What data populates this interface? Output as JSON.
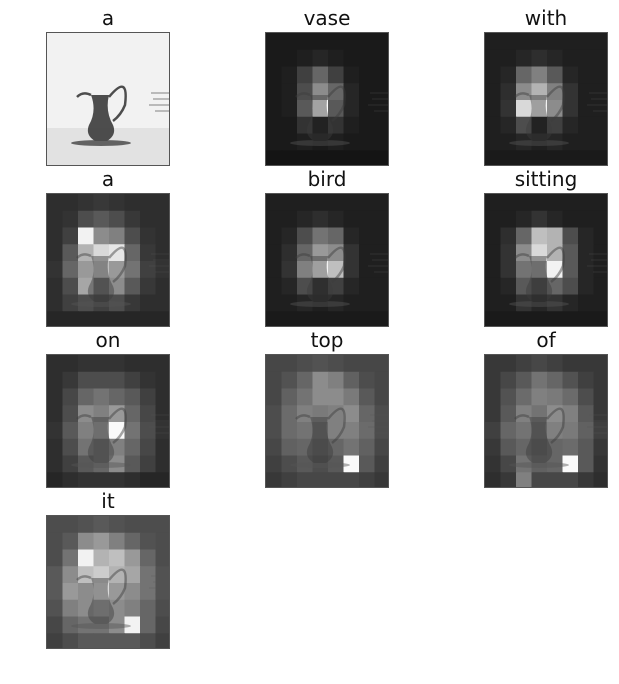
{
  "panels": [
    {
      "word": "a",
      "original": true,
      "grid": []
    },
    {
      "word": "vase",
      "original": false,
      "grid": [
        [
          0.1,
          0.1,
          0.1,
          0.1,
          0.1,
          0.1,
          0.1,
          0.1
        ],
        [
          0.1,
          0.1,
          0.12,
          0.15,
          0.12,
          0.1,
          0.1,
          0.1
        ],
        [
          0.1,
          0.12,
          0.25,
          0.4,
          0.25,
          0.12,
          0.1,
          0.1
        ],
        [
          0.1,
          0.12,
          0.3,
          0.55,
          0.4,
          0.15,
          0.1,
          0.1
        ],
        [
          0.1,
          0.12,
          0.35,
          0.98,
          0.35,
          0.15,
          0.1,
          0.1
        ],
        [
          0.1,
          0.1,
          0.2,
          0.05,
          0.2,
          0.12,
          0.1,
          0.1
        ],
        [
          0.1,
          0.1,
          0.12,
          0.1,
          0.12,
          0.1,
          0.1,
          0.1
        ],
        [
          0.08,
          0.08,
          0.08,
          0.08,
          0.08,
          0.08,
          0.08,
          0.08
        ]
      ]
    },
    {
      "word": "with",
      "original": false,
      "grid": [
        [
          0.12,
          0.12,
          0.12,
          0.12,
          0.12,
          0.12,
          0.12,
          0.12
        ],
        [
          0.12,
          0.12,
          0.15,
          0.18,
          0.15,
          0.12,
          0.12,
          0.12
        ],
        [
          0.12,
          0.15,
          0.4,
          0.5,
          0.35,
          0.15,
          0.12,
          0.12
        ],
        [
          0.12,
          0.18,
          0.55,
          0.7,
          0.5,
          0.2,
          0.12,
          0.12
        ],
        [
          0.12,
          0.2,
          0.85,
          0.95,
          0.55,
          0.2,
          0.12,
          0.12
        ],
        [
          0.12,
          0.15,
          0.3,
          0.05,
          0.25,
          0.15,
          0.12,
          0.12
        ],
        [
          0.12,
          0.12,
          0.15,
          0.12,
          0.15,
          0.12,
          0.12,
          0.12
        ],
        [
          0.1,
          0.1,
          0.1,
          0.1,
          0.1,
          0.1,
          0.1,
          0.1
        ]
      ]
    },
    {
      "word": "a",
      "original": false,
      "grid": [
        [
          0.18,
          0.18,
          0.2,
          0.22,
          0.2,
          0.18,
          0.18,
          0.18
        ],
        [
          0.18,
          0.2,
          0.3,
          0.35,
          0.3,
          0.22,
          0.18,
          0.18
        ],
        [
          0.18,
          0.25,
          0.95,
          0.55,
          0.5,
          0.3,
          0.2,
          0.18
        ],
        [
          0.18,
          0.35,
          0.7,
          0.85,
          0.9,
          0.4,
          0.22,
          0.18
        ],
        [
          0.2,
          0.4,
          0.6,
          0.75,
          0.6,
          0.45,
          0.25,
          0.2
        ],
        [
          0.18,
          0.3,
          0.65,
          0.4,
          0.55,
          0.35,
          0.22,
          0.18
        ],
        [
          0.18,
          0.25,
          0.3,
          0.25,
          0.3,
          0.22,
          0.18,
          0.18
        ],
        [
          0.15,
          0.15,
          0.15,
          0.15,
          0.15,
          0.15,
          0.15,
          0.15
        ]
      ]
    },
    {
      "word": "bird",
      "original": false,
      "grid": [
        [
          0.12,
          0.12,
          0.12,
          0.12,
          0.12,
          0.12,
          0.12,
          0.12
        ],
        [
          0.12,
          0.12,
          0.15,
          0.18,
          0.15,
          0.12,
          0.12,
          0.12
        ],
        [
          0.12,
          0.15,
          0.3,
          0.45,
          0.4,
          0.15,
          0.12,
          0.12
        ],
        [
          0.12,
          0.18,
          0.4,
          0.6,
          0.55,
          0.2,
          0.12,
          0.12
        ],
        [
          0.12,
          0.2,
          0.5,
          0.95,
          0.75,
          0.2,
          0.12,
          0.12
        ],
        [
          0.12,
          0.15,
          0.3,
          0.15,
          0.25,
          0.15,
          0.12,
          0.12
        ],
        [
          0.12,
          0.12,
          0.15,
          0.12,
          0.15,
          0.12,
          0.12,
          0.12
        ],
        [
          0.1,
          0.1,
          0.1,
          0.1,
          0.1,
          0.1,
          0.1,
          0.1
        ]
      ]
    },
    {
      "word": "sitting",
      "original": false,
      "grid": [
        [
          0.12,
          0.12,
          0.12,
          0.12,
          0.12,
          0.12,
          0.12,
          0.12
        ],
        [
          0.12,
          0.12,
          0.15,
          0.2,
          0.15,
          0.12,
          0.12,
          0.12
        ],
        [
          0.12,
          0.18,
          0.4,
          0.75,
          0.7,
          0.3,
          0.15,
          0.12
        ],
        [
          0.12,
          0.2,
          0.55,
          0.85,
          0.7,
          0.35,
          0.15,
          0.12
        ],
        [
          0.12,
          0.2,
          0.45,
          0.6,
          0.95,
          0.35,
          0.15,
          0.12
        ],
        [
          0.12,
          0.15,
          0.35,
          0.25,
          0.4,
          0.3,
          0.15,
          0.12
        ],
        [
          0.12,
          0.12,
          0.2,
          0.15,
          0.2,
          0.15,
          0.12,
          0.12
        ],
        [
          0.1,
          0.1,
          0.1,
          0.1,
          0.1,
          0.1,
          0.1,
          0.1
        ]
      ]
    },
    {
      "word": "on",
      "original": false,
      "grid": [
        [
          0.18,
          0.18,
          0.2,
          0.2,
          0.2,
          0.18,
          0.18,
          0.18
        ],
        [
          0.18,
          0.22,
          0.3,
          0.3,
          0.3,
          0.25,
          0.2,
          0.18
        ],
        [
          0.18,
          0.28,
          0.4,
          0.45,
          0.4,
          0.35,
          0.25,
          0.18
        ],
        [
          0.18,
          0.3,
          0.55,
          0.5,
          0.6,
          0.4,
          0.28,
          0.18
        ],
        [
          0.2,
          0.35,
          0.5,
          0.6,
          0.98,
          0.45,
          0.3,
          0.2
        ],
        [
          0.18,
          0.3,
          0.45,
          0.4,
          0.5,
          0.4,
          0.28,
          0.18
        ],
        [
          0.18,
          0.25,
          0.35,
          0.4,
          0.55,
          0.35,
          0.25,
          0.18
        ],
        [
          0.15,
          0.18,
          0.2,
          0.2,
          0.2,
          0.18,
          0.15,
          0.15
        ]
      ]
    },
    {
      "word": "top",
      "original": false,
      "grid": [
        [
          0.28,
          0.28,
          0.3,
          0.32,
          0.3,
          0.28,
          0.28,
          0.28
        ],
        [
          0.28,
          0.32,
          0.4,
          0.55,
          0.5,
          0.38,
          0.3,
          0.28
        ],
        [
          0.28,
          0.38,
          0.45,
          0.55,
          0.55,
          0.48,
          0.35,
          0.28
        ],
        [
          0.3,
          0.42,
          0.5,
          0.48,
          0.5,
          0.55,
          0.4,
          0.3
        ],
        [
          0.3,
          0.42,
          0.45,
          0.4,
          0.5,
          0.5,
          0.42,
          0.3
        ],
        [
          0.28,
          0.38,
          0.4,
          0.35,
          0.4,
          0.45,
          0.38,
          0.28
        ],
        [
          0.25,
          0.3,
          0.35,
          0.3,
          0.35,
          0.98,
          0.35,
          0.25
        ],
        [
          0.22,
          0.25,
          0.28,
          0.28,
          0.28,
          0.28,
          0.25,
          0.22
        ]
      ]
    },
    {
      "word": "of",
      "original": false,
      "grid": [
        [
          0.22,
          0.22,
          0.25,
          0.28,
          0.25,
          0.22,
          0.22,
          0.22
        ],
        [
          0.22,
          0.28,
          0.35,
          0.45,
          0.4,
          0.32,
          0.25,
          0.22
        ],
        [
          0.22,
          0.32,
          0.42,
          0.5,
          0.48,
          0.42,
          0.3,
          0.22
        ],
        [
          0.22,
          0.35,
          0.5,
          0.45,
          0.55,
          0.5,
          0.35,
          0.22
        ],
        [
          0.25,
          0.4,
          0.45,
          0.4,
          0.5,
          0.48,
          0.38,
          0.25
        ],
        [
          0.22,
          0.35,
          0.4,
          0.35,
          0.4,
          0.42,
          0.35,
          0.22
        ],
        [
          0.2,
          0.28,
          0.45,
          0.38,
          0.4,
          0.98,
          0.35,
          0.2
        ],
        [
          0.18,
          0.22,
          0.5,
          0.28,
          0.28,
          0.28,
          0.22,
          0.18
        ]
      ]
    },
    {
      "word": "it",
      "original": false,
      "grid": [
        [
          0.3,
          0.3,
          0.32,
          0.35,
          0.32,
          0.3,
          0.3,
          0.3
        ],
        [
          0.3,
          0.35,
          0.55,
          0.6,
          0.5,
          0.4,
          0.32,
          0.3
        ],
        [
          0.3,
          0.45,
          0.95,
          0.7,
          0.75,
          0.6,
          0.4,
          0.3
        ],
        [
          0.35,
          0.55,
          0.75,
          0.8,
          0.7,
          0.65,
          0.45,
          0.32
        ],
        [
          0.35,
          0.6,
          0.55,
          0.85,
          0.6,
          0.55,
          0.45,
          0.32
        ],
        [
          0.32,
          0.5,
          0.55,
          0.6,
          0.55,
          0.5,
          0.4,
          0.3
        ],
        [
          0.28,
          0.4,
          0.45,
          0.45,
          0.55,
          0.95,
          0.4,
          0.28
        ],
        [
          0.25,
          0.3,
          0.35,
          0.35,
          0.35,
          0.35,
          0.3,
          0.25
        ]
      ]
    }
  ]
}
